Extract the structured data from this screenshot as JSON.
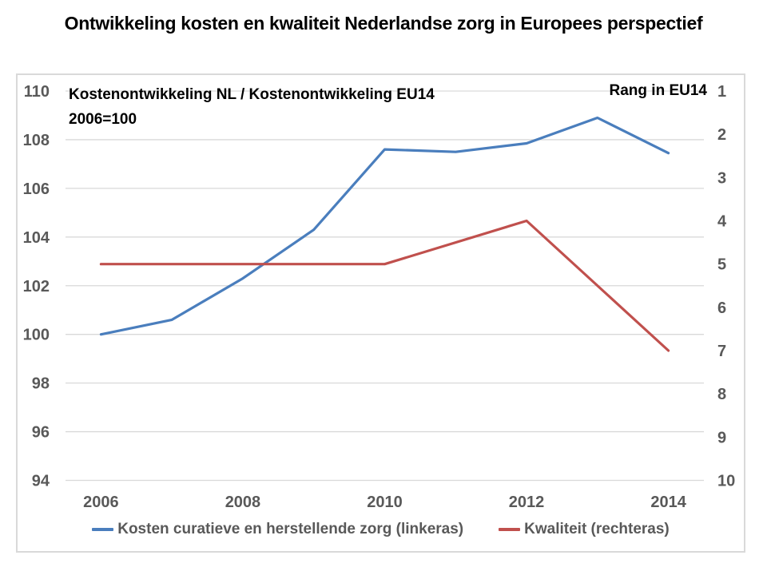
{
  "title": "Ontwikkeling kosten en kwaliteit Nederlandse zorg in Europees perspectief",
  "chart": {
    "left_axis_note_line1": "Kostenontwikkeling NL / Kostenontwikkeling EU14",
    "left_axis_note_line2": "2006=100",
    "right_axis_title": "Rang in EU14"
  },
  "colors": {
    "costs_line": "#4A7EBD",
    "quality_line": "#C0504D",
    "gridline": "#D9D9D9",
    "frame_border": "#D9D9D9",
    "tick_text": "#595959",
    "title_text": "#000000"
  },
  "chart_data": {
    "type": "line",
    "title": "Ontwikkeling kosten en kwaliteit Nederlandse zorg in Europees perspectief",
    "x_tick_labels": [
      "2006",
      "2008",
      "2010",
      "2012",
      "2014"
    ],
    "x_range": [
      2006,
      2014
    ],
    "left_axis": {
      "note_line1": "Kostenontwikkeling NL / Kostenontwikkeling EU14",
      "note_line2": "2006=100",
      "ticks": [
        110,
        108,
        106,
        104,
        102,
        100,
        98,
        96,
        94
      ],
      "min": 94,
      "max": 110
    },
    "right_axis": {
      "title": "Rang in EU14",
      "ticks": [
        1,
        2,
        3,
        4,
        5,
        6,
        7,
        8,
        9,
        10
      ],
      "min": 1,
      "max": 10,
      "inverted": true
    },
    "grid": true,
    "legend_position": "bottom",
    "series": [
      {
        "name": "Kosten curatieve en herstellende zorg (linkeras)",
        "axis": "left",
        "color": "#4A7EBD",
        "x": [
          2006,
          2007,
          2008,
          2009,
          2010,
          2011,
          2012,
          2013,
          2014
        ],
        "values": [
          100.0,
          100.6,
          102.3,
          104.3,
          107.6,
          107.5,
          107.85,
          108.9,
          107.45
        ]
      },
      {
        "name": "Kwaliteit (rechteras)",
        "axis": "right",
        "color": "#C0504D",
        "x": [
          2006,
          2007,
          2008,
          2009,
          2010,
          2012,
          2014
        ],
        "values": [
          5,
          5,
          5,
          5,
          5,
          4,
          7
        ]
      }
    ]
  }
}
